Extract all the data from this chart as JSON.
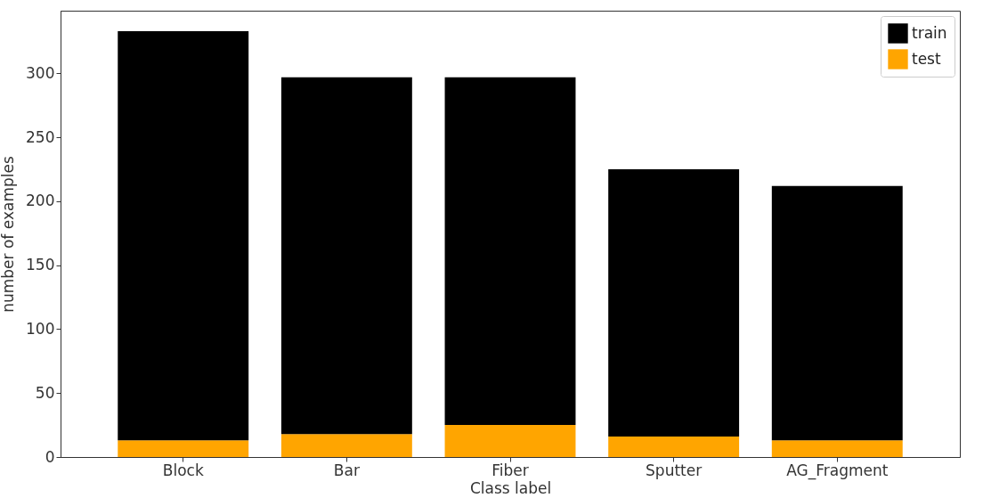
{
  "chart_data": {
    "type": "bar",
    "xlabel": "Class label",
    "ylabel": "number of examples",
    "categories": [
      "Block",
      "Bar",
      "Fiber",
      "Sputter",
      "AG_Fragment"
    ],
    "series": [
      {
        "name": "test",
        "color": "#ffa500",
        "values": [
          13,
          18,
          25,
          16,
          13
        ]
      },
      {
        "name": "train",
        "color": "#000000",
        "values": [
          320,
          279,
          272,
          209,
          199
        ]
      }
    ],
    "stacked": true,
    "ylim": [
      0,
      349
    ],
    "yticks": [
      0,
      50,
      100,
      150,
      200,
      250,
      300
    ],
    "grid": false,
    "legend": "top right"
  }
}
